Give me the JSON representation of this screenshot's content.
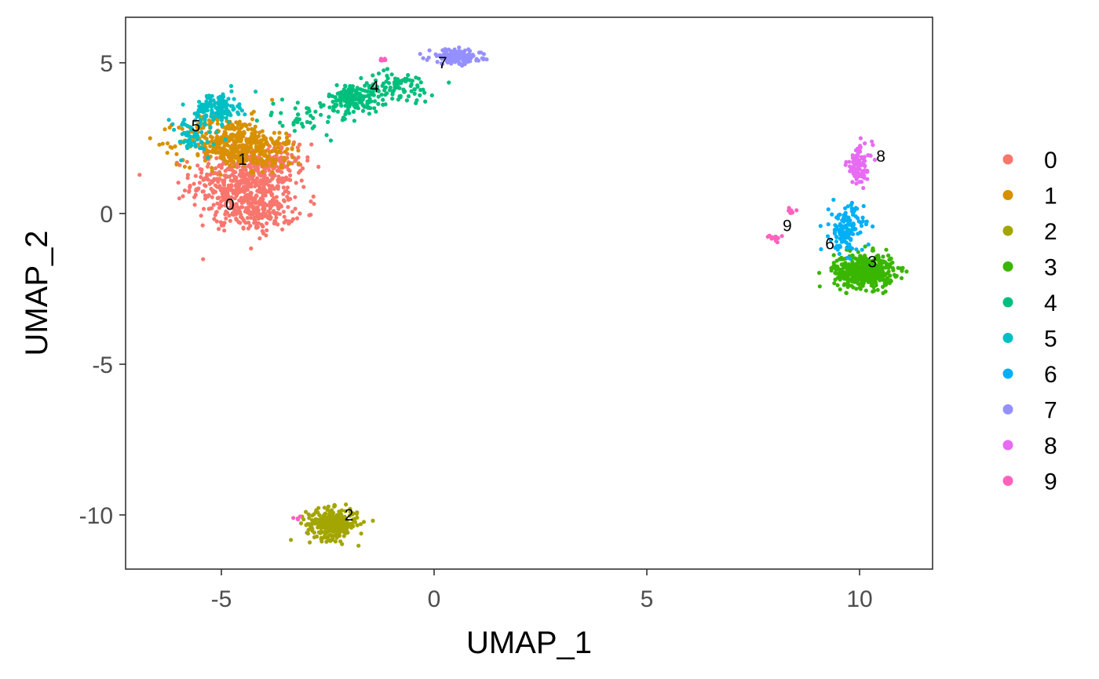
{
  "chart_data": {
    "type": "scatter",
    "title": "",
    "xlabel": "UMAP_1",
    "ylabel": "UMAP_2",
    "xlim": [
      -7.2,
      11.8
    ],
    "ylim": [
      -11.8,
      6.5
    ],
    "xticks": [
      -5,
      0,
      5,
      10
    ],
    "yticks": [
      5,
      0,
      -5,
      -10
    ],
    "grid": false,
    "legend_position": "right",
    "clusters": [
      {
        "name": "0",
        "color": "#F8766D",
        "center": [
          -4.5,
          0.8
        ],
        "label_pos": [
          -4.8,
          0.3
        ],
        "blobs": [
          {
            "c": [
              -4.5,
              1.0
            ],
            "s": [
              0.6,
              0.6
            ],
            "n": 500
          },
          {
            "c": [
              -4.1,
              0.0
            ],
            "s": [
              0.4,
              0.3
            ],
            "n": 150
          },
          {
            "c": [
              -3.7,
              1.5
            ],
            "s": [
              0.4,
              0.5
            ],
            "n": 80
          }
        ]
      },
      {
        "name": "1",
        "color": "#D89000",
        "center": [
          -4.7,
          2.2
        ],
        "label_pos": [
          -4.5,
          1.8
        ],
        "blobs": [
          {
            "c": [
              -4.8,
              2.4
            ],
            "s": [
              0.6,
              0.4
            ],
            "n": 350
          },
          {
            "c": [
              -4.0,
              2.0
            ],
            "s": [
              0.5,
              0.3
            ],
            "n": 100
          }
        ]
      },
      {
        "name": "2",
        "color": "#A3A500",
        "center": [
          -2.4,
          -10.3
        ],
        "label_pos": [
          -2.0,
          -10.0
        ],
        "blobs": [
          {
            "c": [
              -2.4,
              -10.3
            ],
            "s": [
              0.3,
              0.25
            ],
            "n": 300
          }
        ]
      },
      {
        "name": "3",
        "color": "#39B600",
        "center": [
          10.1,
          -1.9
        ],
        "label_pos": [
          10.3,
          -1.6
        ],
        "blobs": [
          {
            "c": [
              10.1,
              -1.9
            ],
            "s": [
              0.35,
              0.28
            ],
            "n": 450
          }
        ]
      },
      {
        "name": "4",
        "color": "#00BF7D",
        "center": [
          -1.9,
          3.8
        ],
        "label_pos": [
          -1.4,
          4.2
        ],
        "blobs": [
          {
            "c": [
              -1.9,
              3.8
            ],
            "s": [
              0.3,
              0.25
            ],
            "n": 150
          },
          {
            "c": [
              -0.9,
              4.2
            ],
            "s": [
              0.45,
              0.25
            ],
            "n": 90
          },
          {
            "c": [
              -3.0,
              3.2
            ],
            "s": [
              0.5,
              0.3
            ],
            "n": 40
          }
        ]
      },
      {
        "name": "5",
        "color": "#00BFC4",
        "center": [
          -5.1,
          3.5
        ],
        "label_pos": [
          -5.6,
          2.9
        ],
        "blobs": [
          {
            "c": [
              -5.1,
              3.5
            ],
            "s": [
              0.25,
              0.25
            ],
            "n": 130
          },
          {
            "c": [
              -5.7,
              2.5
            ],
            "s": [
              0.35,
              0.4
            ],
            "n": 60
          }
        ]
      },
      {
        "name": "6",
        "color": "#00B0F6",
        "center": [
          9.7,
          -0.5
        ],
        "label_pos": [
          9.3,
          -1.0
        ],
        "blobs": [
          {
            "c": [
              9.7,
              -0.5
            ],
            "s": [
              0.2,
              0.4
            ],
            "n": 140
          }
        ]
      },
      {
        "name": "7",
        "color": "#9590FF",
        "center": [
          0.5,
          5.2
        ],
        "label_pos": [
          0.2,
          5.0
        ],
        "blobs": [
          {
            "c": [
              0.5,
              5.2
            ],
            "s": [
              0.3,
              0.12
            ],
            "n": 160
          }
        ]
      },
      {
        "name": "8",
        "color": "#E76BF3",
        "center": [
          10.0,
          1.6
        ],
        "label_pos": [
          10.5,
          1.9
        ],
        "blobs": [
          {
            "c": [
              10.0,
              1.6
            ],
            "s": [
              0.15,
              0.35
            ],
            "n": 90
          }
        ]
      },
      {
        "name": "9",
        "color": "#FF62BC",
        "center": [
          8.0,
          -0.8
        ],
        "label_pos": [
          8.3,
          -0.4
        ],
        "blobs": [
          {
            "c": [
              8.0,
              -0.8
            ],
            "s": [
              0.08,
              0.05
            ],
            "n": 12
          },
          {
            "c": [
              8.4,
              0.1
            ],
            "s": [
              0.05,
              0.04
            ],
            "n": 8
          },
          {
            "c": [
              -1.2,
              5.1
            ],
            "s": [
              0.05,
              0.03
            ],
            "n": 8
          },
          {
            "c": [
              -3.2,
              -10.1
            ],
            "s": [
              0.05,
              0.03
            ],
            "n": 4
          }
        ]
      }
    ]
  }
}
